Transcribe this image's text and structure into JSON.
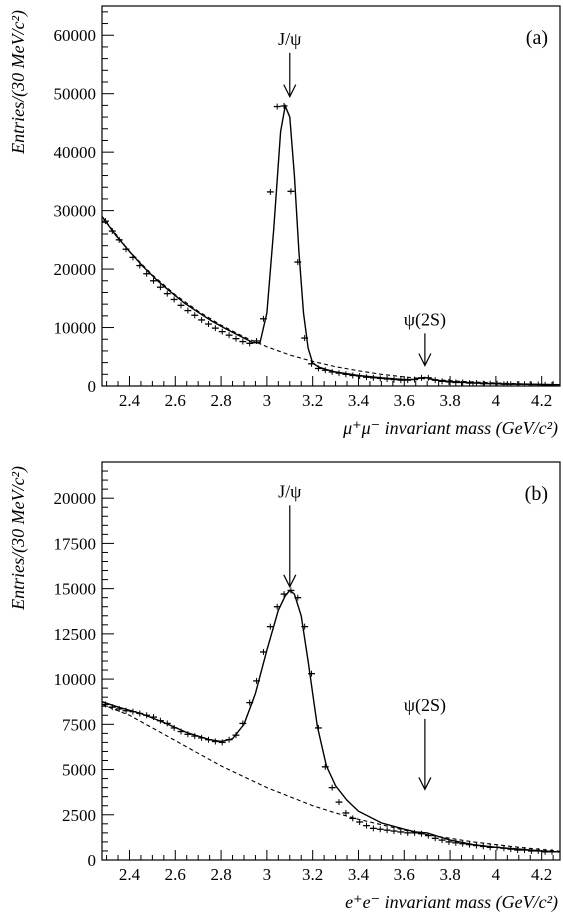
{
  "figure_type": "two-panel invariant mass spectra with fit curves",
  "chart_data": [
    {
      "type": "line",
      "panel_label": "(a)",
      "xlabel": "μ⁺μ⁻ invariant mass (GeV/c²)",
      "ylabel": "Entries/(30 MeV/c²)",
      "xlim": [
        2.28,
        4.28
      ],
      "ylim": [
        0,
        65000
      ],
      "x_ticks": [
        2.4,
        2.6,
        2.8,
        3,
        3.2,
        3.4,
        3.6,
        3.8,
        4,
        4.2
      ],
      "x_tick_labels": [
        "2.4",
        "2.6",
        "2.8",
        "3",
        "3.2",
        "3.4",
        "3.6",
        "3.8",
        "4",
        "4.2"
      ],
      "y_ticks": [
        0,
        10000,
        20000,
        30000,
        40000,
        50000,
        60000
      ],
      "y_tick_labels": [
        "0",
        "10000",
        "20000",
        "30000",
        "40000",
        "50000",
        "60000"
      ],
      "grid": false,
      "annotations": [
        {
          "text": "J/ψ",
          "x": 3.1,
          "arrow_tip_y": 49500,
          "arrow_tail_y": 57000
        },
        {
          "text": "ψ(2S)",
          "x": 3.69,
          "arrow_tip_y": 3500,
          "arrow_tail_y": 9000
        }
      ],
      "series": [
        {
          "role": "data",
          "x": [
            2.295,
            2.325,
            2.355,
            2.385,
            2.415,
            2.445,
            2.475,
            2.505,
            2.535,
            2.565,
            2.595,
            2.625,
            2.655,
            2.685,
            2.715,
            2.745,
            2.775,
            2.805,
            2.835,
            2.865,
            2.895,
            2.925,
            2.955,
            2.985,
            3.015,
            3.045,
            3.075,
            3.105,
            3.135,
            3.165,
            3.195,
            3.225,
            3.255,
            3.285,
            3.315,
            3.345,
            3.375,
            3.405,
            3.435,
            3.465,
            3.495,
            3.525,
            3.555,
            3.585,
            3.615,
            3.645,
            3.675,
            3.705,
            3.735,
            3.765,
            3.795,
            3.825,
            3.855,
            3.885,
            3.915,
            3.945,
            3.975,
            4.005,
            4.035,
            4.065,
            4.095,
            4.125,
            4.155,
            4.185,
            4.215,
            4.245
          ],
          "y": [
            28200,
            26500,
            25000,
            23400,
            22000,
            20600,
            19200,
            18000,
            16900,
            15800,
            14800,
            13800,
            12900,
            12100,
            11300,
            10600,
            9900,
            9300,
            8700,
            8100,
            7600,
            7300,
            7700,
            11500,
            33200,
            47800,
            47900,
            33300,
            21200,
            8200,
            3800,
            3000,
            2700,
            2400,
            2200,
            2000,
            1800,
            1700,
            1500,
            1400,
            1300,
            1200,
            1100,
            1000,
            1000,
            1100,
            1400,
            1400,
            1000,
            800,
            700,
            600,
            600,
            500,
            500,
            400,
            400,
            400,
            300,
            300,
            300,
            300,
            250,
            250,
            200,
            200
          ]
        },
        {
          "role": "fit",
          "x": [
            2.28,
            2.34,
            2.4,
            2.46,
            2.52,
            2.58,
            2.64,
            2.7,
            2.76,
            2.82,
            2.88,
            2.94,
            2.97,
            3.0,
            3.03,
            3.06,
            3.08,
            3.1,
            3.12,
            3.14,
            3.16,
            3.18,
            3.2,
            3.23,
            3.26,
            3.3,
            3.4,
            3.5,
            3.6,
            3.65,
            3.67,
            3.69,
            3.71,
            3.74,
            3.8,
            3.9,
            4.0,
            4.1,
            4.2,
            4.28
          ],
          "y": [
            29000,
            25800,
            23000,
            20400,
            18100,
            16100,
            14200,
            12600,
            11100,
            9800,
            8600,
            7400,
            7400,
            12500,
            27000,
            43500,
            47900,
            46000,
            36000,
            23000,
            12500,
            6500,
            3900,
            3200,
            2800,
            2400,
            1800,
            1400,
            1100,
            1150,
            1350,
            1450,
            1300,
            1000,
            750,
            550,
            400,
            330,
            260,
            220
          ]
        },
        {
          "role": "background",
          "x": [
            2.28,
            2.4,
            2.5,
            2.6,
            2.7,
            2.8,
            2.9,
            3.0,
            3.1,
            3.2,
            3.3,
            3.4,
            3.5,
            3.6,
            3.7,
            3.8,
            3.9,
            4.0,
            4.1,
            4.2,
            4.28
          ],
          "y": [
            29000,
            23000,
            19000,
            15600,
            12800,
            10400,
            8400,
            6700,
            5300,
            4200,
            3300,
            2600,
            2000,
            1550,
            1200,
            900,
            680,
            510,
            380,
            280,
            220
          ]
        }
      ]
    },
    {
      "type": "line",
      "panel_label": "(b)",
      "xlabel": "e⁺e⁻ invariant mass (GeV/c²)",
      "ylabel": "Entries/(30 MeV/c²)",
      "xlim": [
        2.28,
        4.28
      ],
      "ylim": [
        0,
        22000
      ],
      "x_ticks": [
        2.4,
        2.6,
        2.8,
        3,
        3.2,
        3.4,
        3.6,
        3.8,
        4,
        4.2
      ],
      "x_tick_labels": [
        "2.4",
        "2.6",
        "2.8",
        "3",
        "3.2",
        "3.4",
        "3.6",
        "3.8",
        "4",
        "4.2"
      ],
      "y_ticks": [
        0,
        2500,
        5000,
        7500,
        10000,
        12500,
        15000,
        17500,
        20000
      ],
      "y_tick_labels": [
        "0",
        "2500",
        "5000",
        "7500",
        "10000",
        "12500",
        "15000",
        "17500",
        "20000"
      ],
      "grid": false,
      "annotations": [
        {
          "text": "J/ψ",
          "x": 3.1,
          "arrow_tip_y": 15100,
          "arrow_tail_y": 19600
        },
        {
          "text": "ψ(2S)",
          "x": 3.69,
          "arrow_tip_y": 3900,
          "arrow_tail_y": 7800
        }
      ],
      "series": [
        {
          "role": "data",
          "x": [
            2.295,
            2.325,
            2.355,
            2.385,
            2.415,
            2.445,
            2.475,
            2.505,
            2.535,
            2.565,
            2.595,
            2.625,
            2.655,
            2.685,
            2.715,
            2.745,
            2.775,
            2.805,
            2.835,
            2.865,
            2.895,
            2.925,
            2.955,
            2.985,
            3.015,
            3.045,
            3.075,
            3.105,
            3.135,
            3.165,
            3.195,
            3.225,
            3.255,
            3.285,
            3.315,
            3.345,
            3.375,
            3.405,
            3.435,
            3.465,
            3.495,
            3.525,
            3.555,
            3.585,
            3.615,
            3.645,
            3.675,
            3.705,
            3.735,
            3.765,
            3.795,
            3.825,
            3.855,
            3.885,
            3.915,
            3.945,
            3.975,
            4.005,
            4.035,
            4.065,
            4.095,
            4.125,
            4.155,
            4.185,
            4.215,
            4.245
          ],
          "y": [
            8600,
            8450,
            8350,
            8250,
            8200,
            8100,
            8000,
            7900,
            7700,
            7550,
            7300,
            7100,
            6950,
            6850,
            6750,
            6650,
            6550,
            6500,
            6650,
            6900,
            7550,
            8700,
            9900,
            11500,
            12900,
            14000,
            14700,
            14900,
            14500,
            12900,
            10300,
            7300,
            5150,
            4000,
            3200,
            2600,
            2300,
            2100,
            1900,
            1750,
            1700,
            1650,
            1600,
            1550,
            1500,
            1500,
            1450,
            1350,
            1200,
            1100,
            1000,
            950,
            900,
            850,
            800,
            750,
            700,
            700,
            650,
            600,
            550,
            550,
            500,
            500,
            450,
            450
          ]
        },
        {
          "role": "fit",
          "x": [
            2.28,
            2.35,
            2.45,
            2.55,
            2.65,
            2.75,
            2.8,
            2.85,
            2.9,
            2.95,
            3.0,
            3.05,
            3.08,
            3.1,
            3.12,
            3.15,
            3.18,
            3.22,
            3.26,
            3.3,
            3.35,
            3.4,
            3.5,
            3.6,
            3.65,
            3.7,
            3.75,
            3.8,
            3.9,
            4.0,
            4.1,
            4.2,
            4.28
          ],
          "y": [
            8750,
            8450,
            8100,
            7600,
            7050,
            6650,
            6550,
            6700,
            7500,
            9200,
            11600,
            13800,
            14600,
            14900,
            14700,
            13500,
            11000,
            7400,
            5200,
            4100,
            3300,
            2700,
            2050,
            1700,
            1550,
            1500,
            1300,
            1100,
            850,
            700,
            600,
            500,
            450
          ]
        },
        {
          "role": "background",
          "x": [
            2.28,
            2.4,
            2.5,
            2.6,
            2.7,
            2.8,
            2.9,
            3.0,
            3.1,
            3.2,
            3.3,
            3.4,
            3.5,
            3.6,
            3.7,
            3.8,
            3.9,
            4.0,
            4.1,
            4.2,
            4.28
          ],
          "y": [
            8600,
            8000,
            7300,
            6600,
            5900,
            5200,
            4600,
            4000,
            3500,
            3000,
            2600,
            2250,
            1950,
            1650,
            1400,
            1200,
            1000,
            850,
            700,
            580,
            480
          ]
        }
      ]
    }
  ]
}
